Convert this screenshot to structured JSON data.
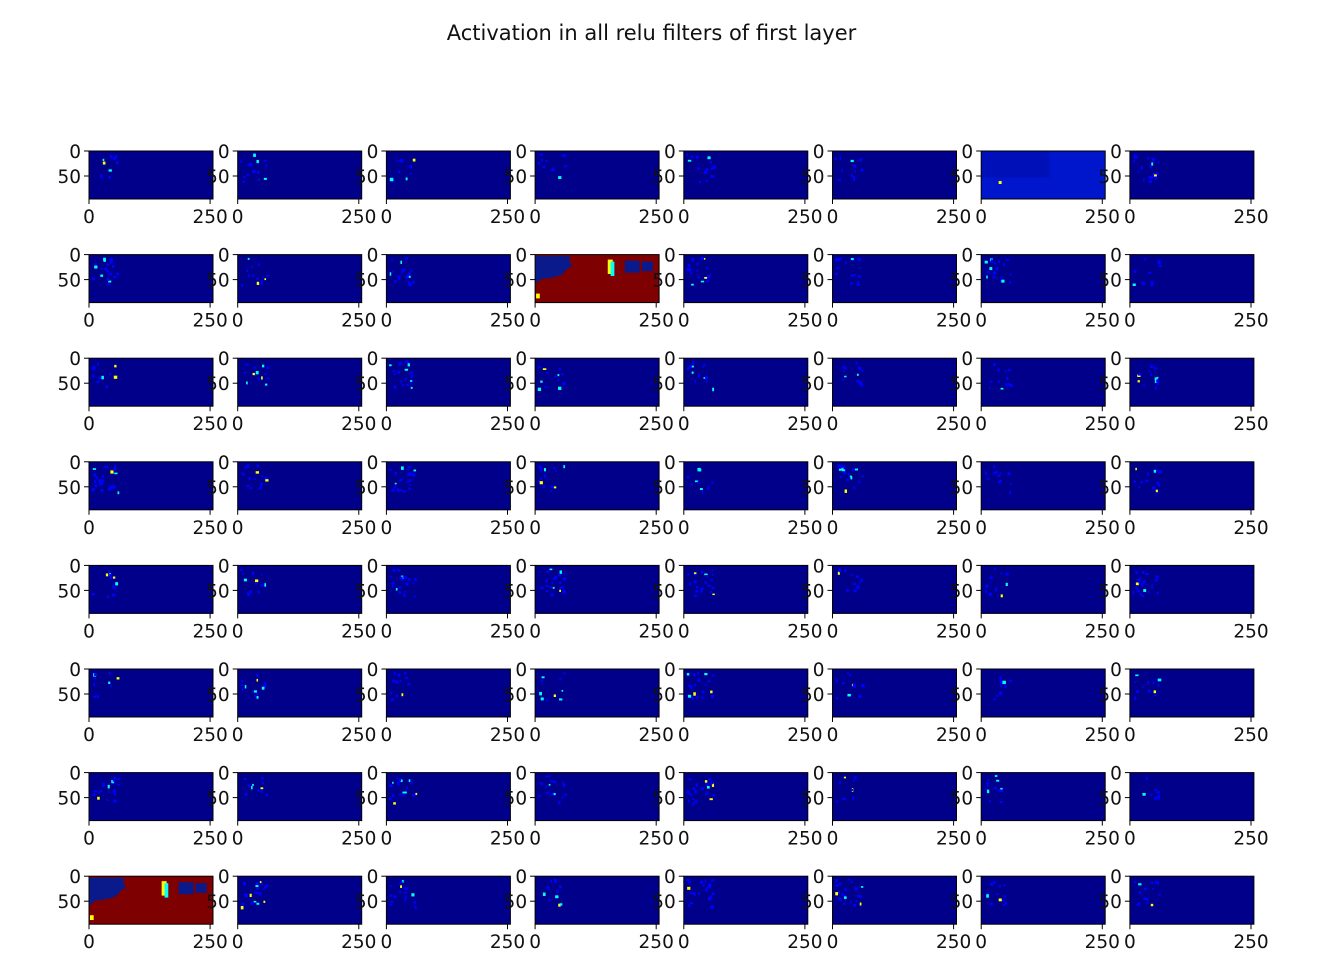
{
  "chart_data": {
    "type": "heatmap",
    "title": "Activation in all relu filters of first layer",
    "grid": {
      "rows": 8,
      "cols": 8
    },
    "colormap": [
      "#00007f",
      "#0000ff",
      "#00ffff",
      "#ffff00",
      "#ff0000",
      "#7f0000"
    ],
    "background_color": "#00008b",
    "xlim": [
      0,
      256
    ],
    "ylim": [
      96,
      0
    ],
    "x_ticks": [
      "0",
      "250"
    ],
    "y_ticks": [
      "0",
      "50"
    ],
    "activations": [
      {
        "index": 6,
        "type": "uniform_high_blue"
      },
      {
        "index": 11,
        "type": "saturated_red"
      },
      {
        "index": 56,
        "type": "saturated_red"
      }
    ]
  }
}
